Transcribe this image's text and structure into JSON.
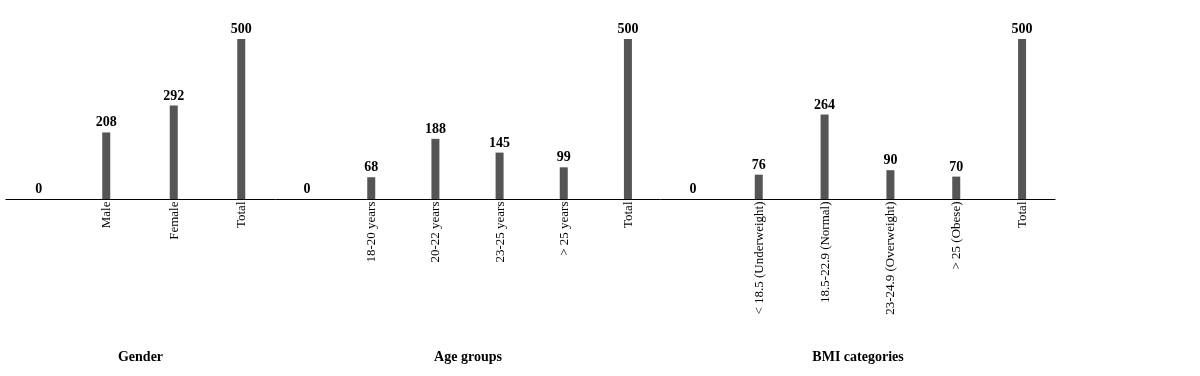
{
  "chart_data": [
    {
      "type": "bar",
      "xlabel": "Gender",
      "categories": [
        null,
        "Male",
        "Female",
        "Total"
      ],
      "values": [
        0,
        208,
        292,
        500
      ],
      "color": "#555555",
      "data_labels": true,
      "grid": false
    },
    {
      "type": "bar",
      "xlabel": "Age groups",
      "categories": [
        null,
        "18-20 years",
        "20-22 years",
        "23-25 years",
        "> 25 years",
        "Total"
      ],
      "values": [
        0,
        68,
        188,
        145,
        99,
        500
      ],
      "color": "#555555",
      "data_labels": true,
      "grid": false
    },
    {
      "type": "bar",
      "xlabel": "BMI categories",
      "categories": [
        null,
        "< 18.5 (Underweight)",
        "18.5-22.9 (Normal)",
        "23-24.9 (Overweight)",
        "> 25 (Obese)",
        "Total"
      ],
      "values": [
        0,
        76,
        264,
        90,
        70,
        500
      ],
      "color": "#555555",
      "data_labels": true,
      "grid": false
    }
  ]
}
